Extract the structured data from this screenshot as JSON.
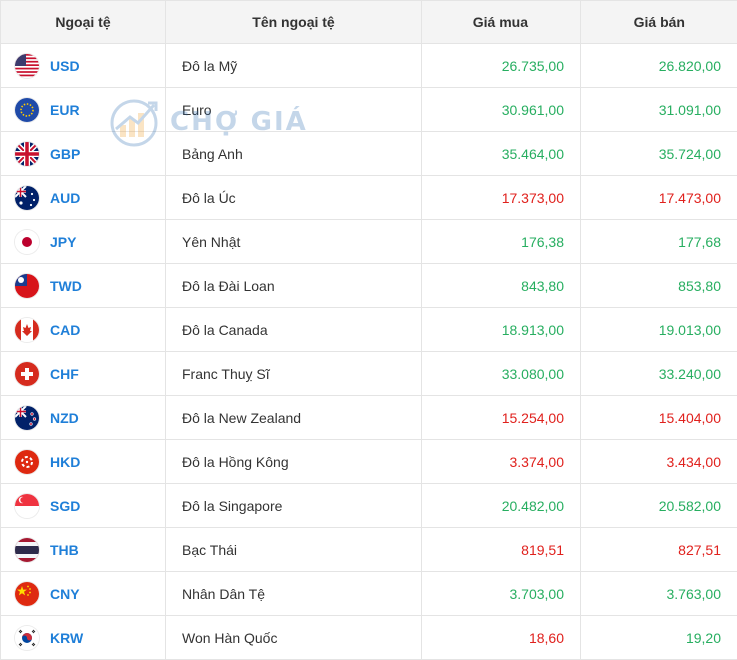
{
  "header": {
    "col_code": "Ngoại tệ",
    "col_name": "Tên ngoại tệ",
    "col_buy": "Giá mua",
    "col_sell": "Giá bán"
  },
  "watermark": {
    "text": "CHỢ GIÁ"
  },
  "colors": {
    "up": "#27ae60",
    "down": "#e0211d",
    "code": "#1f7fd8"
  },
  "rows": [
    {
      "code": "USD",
      "name": "Đô la Mỹ",
      "buy": "26.735,00",
      "sell": "26.820,00",
      "trend": "up",
      "flag": "us-flag-icon"
    },
    {
      "code": "EUR",
      "name": "Euro",
      "buy": "30.961,00",
      "sell": "31.091,00",
      "trend": "up",
      "flag": "eu-flag-icon"
    },
    {
      "code": "GBP",
      "name": "Bảng Anh",
      "buy": "35.464,00",
      "sell": "35.724,00",
      "trend": "up",
      "flag": "gb-flag-icon"
    },
    {
      "code": "AUD",
      "name": "Đô la Úc",
      "buy": "17.373,00",
      "sell": "17.473,00",
      "trend": "down",
      "flag": "au-flag-icon"
    },
    {
      "code": "JPY",
      "name": "Yên Nhật",
      "buy": "176,38",
      "sell": "177,68",
      "trend": "up",
      "flag": "jp-flag-icon"
    },
    {
      "code": "TWD",
      "name": "Đô la Đài Loan",
      "buy": "843,80",
      "sell": "853,80",
      "trend": "up",
      "flag": "tw-flag-icon"
    },
    {
      "code": "CAD",
      "name": "Đô la Canada",
      "buy": "18.913,00",
      "sell": "19.013,00",
      "trend": "up",
      "flag": "ca-flag-icon"
    },
    {
      "code": "CHF",
      "name": "Franc Thuỵ Sĩ",
      "buy": "33.080,00",
      "sell": "33.240,00",
      "trend": "up",
      "flag": "ch-flag-icon"
    },
    {
      "code": "NZD",
      "name": "Đô la New Zealand",
      "buy": "15.254,00",
      "sell": "15.404,00",
      "trend": "down",
      "flag": "nz-flag-icon"
    },
    {
      "code": "HKD",
      "name": "Đô la Hồng Kông",
      "buy": "3.374,00",
      "sell": "3.434,00",
      "trend": "down",
      "flag": "hk-flag-icon"
    },
    {
      "code": "SGD",
      "name": "Đô la Singapore",
      "buy": "20.482,00",
      "sell": "20.582,00",
      "trend": "up",
      "flag": "sg-flag-icon"
    },
    {
      "code": "THB",
      "name": "Bạc Thái",
      "buy": "819,51",
      "sell": "827,51",
      "trend": "down",
      "flag": "th-flag-icon"
    },
    {
      "code": "CNY",
      "name": "Nhân Dân Tệ",
      "buy": "3.703,00",
      "sell": "3.763,00",
      "trend": "up",
      "flag": "cn-flag-icon"
    },
    {
      "code": "KRW",
      "name": "Won Hàn Quốc",
      "buy": "18,60",
      "sell": "19,20",
      "trend": "mixed",
      "buy_trend": "down",
      "sell_trend": "up",
      "flag": "kr-flag-icon"
    }
  ]
}
